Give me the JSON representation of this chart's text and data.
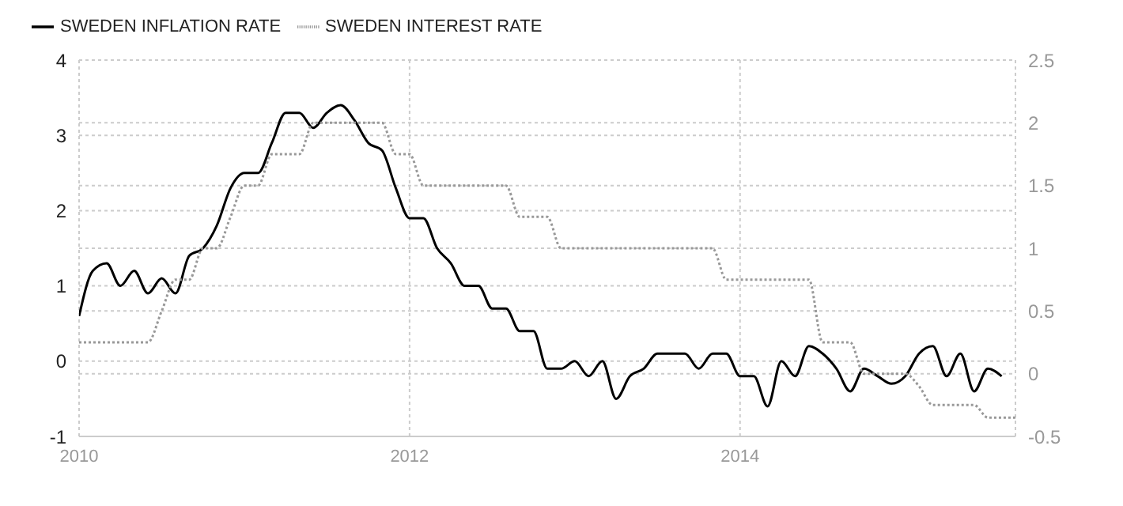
{
  "chart_data": {
    "type": "line",
    "x": [
      "2010-01",
      "2010-02",
      "2010-03",
      "2010-04",
      "2010-05",
      "2010-06",
      "2010-07",
      "2010-08",
      "2010-09",
      "2010-10",
      "2010-11",
      "2010-12",
      "2011-01",
      "2011-02",
      "2011-03",
      "2011-04",
      "2011-05",
      "2011-06",
      "2011-07",
      "2011-08",
      "2011-09",
      "2011-10",
      "2011-11",
      "2011-12",
      "2012-01",
      "2012-02",
      "2012-03",
      "2012-04",
      "2012-05",
      "2012-06",
      "2012-07",
      "2012-08",
      "2012-09",
      "2012-10",
      "2012-11",
      "2012-12",
      "2013-01",
      "2013-02",
      "2013-03",
      "2013-04",
      "2013-05",
      "2013-06",
      "2013-07",
      "2013-08",
      "2013-09",
      "2013-10",
      "2013-11",
      "2013-12",
      "2014-01",
      "2014-02",
      "2014-03",
      "2014-04",
      "2014-05",
      "2014-06",
      "2014-07",
      "2014-08",
      "2014-09",
      "2014-10",
      "2014-11",
      "2014-12",
      "2015-01",
      "2015-02",
      "2015-03",
      "2015-04",
      "2015-05",
      "2015-06",
      "2015-07",
      "2015-08",
      "2015-09"
    ],
    "series": [
      {
        "name": "SWEDEN INFLATION RATE",
        "color": "#000000",
        "line_style": "solid",
        "values": [
          0.6,
          1.2,
          1.3,
          1.0,
          1.2,
          0.9,
          1.1,
          0.9,
          1.4,
          1.5,
          1.8,
          2.3,
          2.5,
          2.5,
          2.9,
          3.3,
          3.3,
          3.1,
          3.3,
          3.4,
          3.2,
          2.9,
          2.8,
          2.3,
          1.9,
          1.9,
          1.5,
          1.3,
          1.0,
          1.0,
          0.7,
          0.7,
          0.4,
          0.4,
          -0.1,
          -0.1,
          0.0,
          -0.2,
          0.0,
          -0.5,
          -0.2,
          -0.1,
          0.1,
          0.1,
          0.1,
          -0.1,
          0.1,
          0.1,
          -0.2,
          -0.2,
          -0.6,
          0.0,
          -0.2,
          0.2,
          0.1,
          -0.1,
          -0.4,
          -0.1,
          -0.2,
          -0.3,
          -0.2,
          0.1,
          0.2,
          -0.2,
          0.1,
          -0.4,
          -0.1,
          -0.2,
          null
        ]
      },
      {
        "name": "SWEDEN INTEREST RATE",
        "color": "#999999",
        "line_style": "dotted",
        "axis": "y2",
        "values": [
          0.25,
          0.25,
          0.25,
          0.25,
          0.25,
          0.25,
          0.5,
          0.75,
          0.75,
          1.0,
          1.0,
          1.25,
          1.5,
          1.5,
          1.75,
          1.75,
          1.75,
          2.0,
          2.0,
          2.0,
          2.0,
          2.0,
          2.0,
          1.75,
          1.75,
          1.5,
          1.5,
          1.5,
          1.5,
          1.5,
          1.5,
          1.5,
          1.25,
          1.25,
          1.25,
          1.0,
          1.0,
          1.0,
          1.0,
          1.0,
          1.0,
          1.0,
          1.0,
          1.0,
          1.0,
          1.0,
          1.0,
          0.75,
          0.75,
          0.75,
          0.75,
          0.75,
          0.75,
          0.75,
          0.25,
          0.25,
          0.25,
          0.0,
          0.0,
          0.0,
          0.0,
          -0.1,
          -0.25,
          -0.25,
          -0.25,
          -0.25,
          -0.35,
          -0.35,
          -0.35
        ]
      }
    ],
    "xlim": [
      "2010-01",
      "2015-09"
    ],
    "xticks": [
      "2010",
      "2012",
      "2014"
    ],
    "ylim": [
      -1,
      4
    ],
    "yticks": [
      -1,
      0,
      1,
      2,
      3,
      4
    ],
    "y2lim": [
      -0.5,
      2.5
    ],
    "y2ticks": [
      -0.5,
      0,
      0.5,
      1,
      1.5,
      2,
      2.5
    ],
    "grid": true,
    "legend": "top left"
  }
}
